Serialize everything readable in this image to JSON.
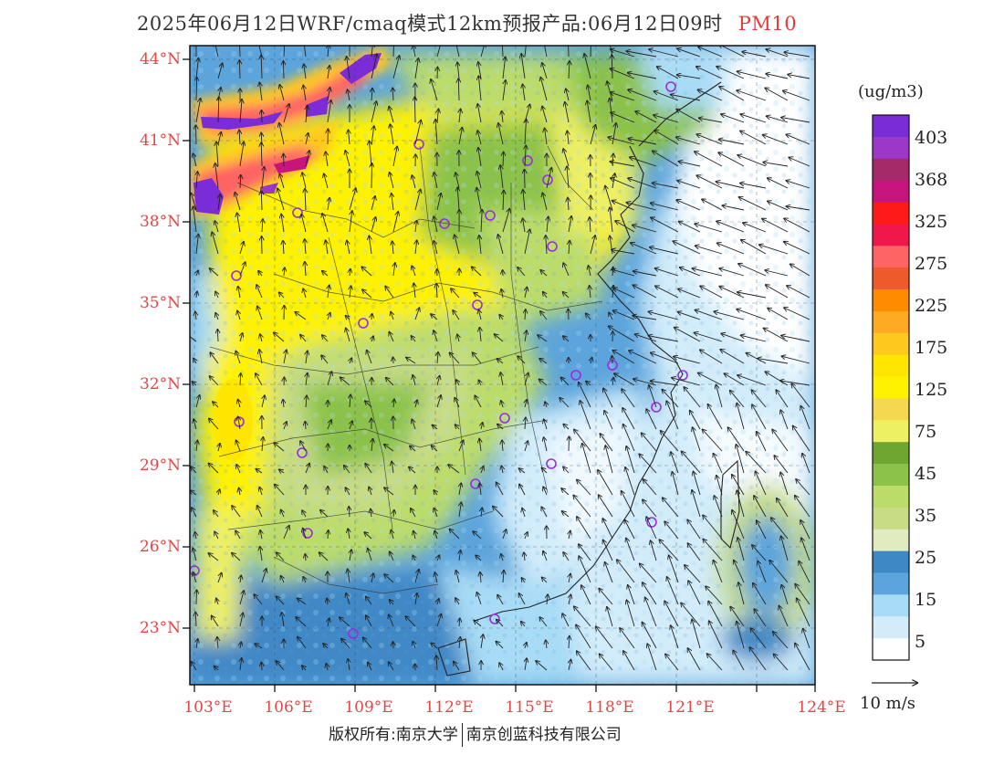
{
  "title": {
    "product": "2025年06月12日WRF/cmaq模式12km预报产品:06月12日09时",
    "variable": "PM10"
  },
  "axes": {
    "latitudes": [
      "44°N",
      "41°N",
      "38°N",
      "35°N",
      "32°N",
      "29°N",
      "26°N",
      "23°N"
    ],
    "longitudes": [
      "103°E",
      "106°E",
      "109°E",
      "112°E",
      "115°E",
      "118°E",
      "121°E",
      "124°E"
    ]
  },
  "colorbar": {
    "unit": "(ug/m3)",
    "labels": [
      "403",
      "368",
      "325",
      "275",
      "225",
      "175",
      "125",
      "75",
      "45",
      "35",
      "25",
      "15",
      "5"
    ],
    "colors": [
      "#7a2cd6",
      "#9b38c8",
      "#a52a6a",
      "#c8157e",
      "#ff1a1a",
      "#f0184a",
      "#ff6464",
      "#ee5a2a",
      "#ff8c00",
      "#ffaa22",
      "#ffc81e",
      "#ffe600",
      "#fff200",
      "#f4d850",
      "#eef064",
      "#6fa632",
      "#8cc24a",
      "#bcdc6a",
      "#c8dc86",
      "#e0ecc0",
      "#3f88c6",
      "#5ca4dc",
      "#a8dcf6",
      "#d2ecfa",
      "#ffffff"
    ]
  },
  "wind_vector": {
    "label": "10 m/s"
  },
  "footer": {
    "left": "版权所有:南京大学",
    "right": "南京创蓝科技有限公司"
  }
}
